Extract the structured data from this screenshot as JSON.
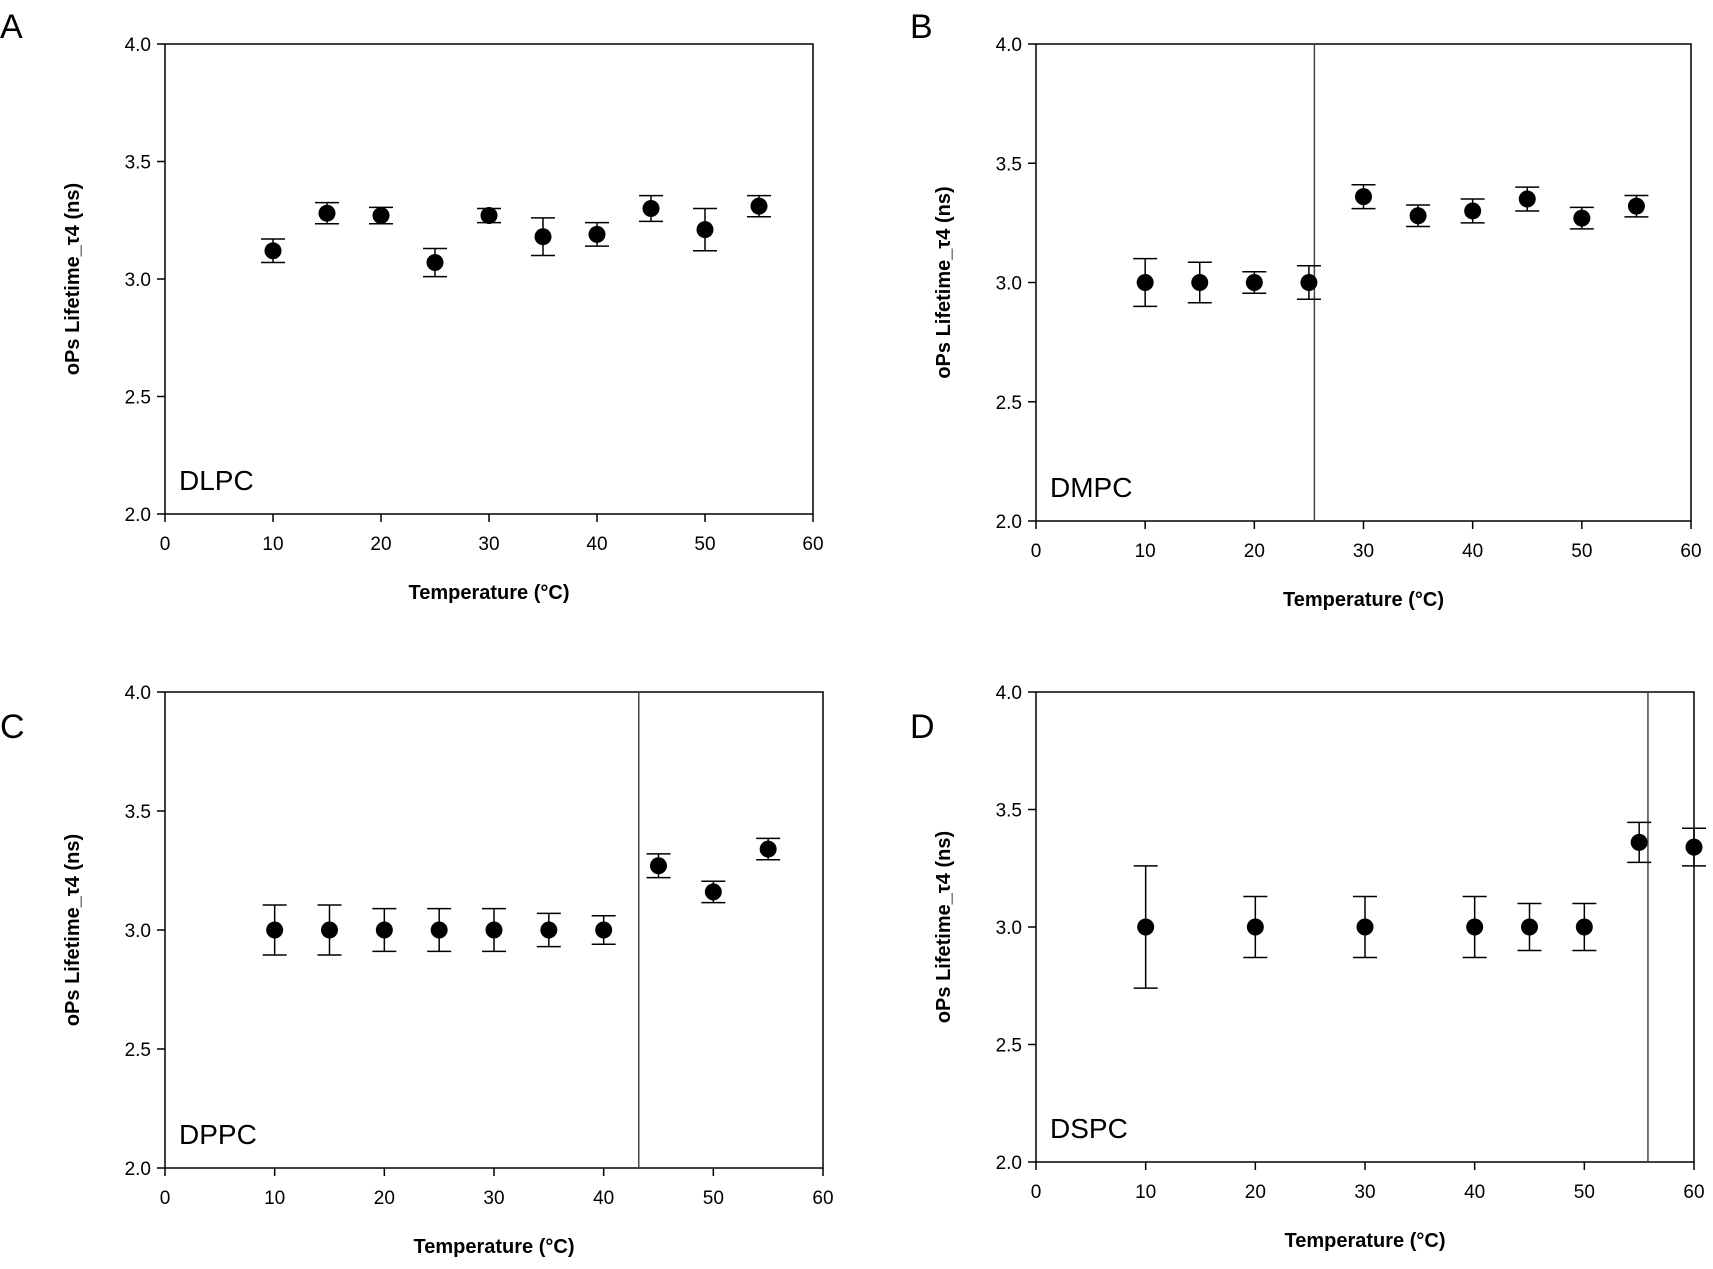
{
  "chart_data": [
    {
      "type": "scatter",
      "panel_letter": "A",
      "sample_label": "DLPC",
      "xlabel": "Temperature (°C)",
      "ylabel": "oPs Lifetime_τ4 (ns)",
      "xlim": [
        0,
        60
      ],
      "ylim": [
        2.0,
        4.0
      ],
      "x_ticks": [
        "0",
        "10",
        "20",
        "30",
        "40",
        "50",
        "60"
      ],
      "y_ticks": [
        "2.0",
        "2.5",
        "3.0",
        "3.5",
        "4.0"
      ],
      "transition_line_x": null,
      "series": [
        {
          "x": [
            10,
            15,
            20,
            25,
            30,
            35,
            40,
            45,
            50,
            55
          ],
          "y": [
            3.12,
            3.28,
            3.27,
            3.07,
            3.27,
            3.18,
            3.19,
            3.3,
            3.21,
            3.31
          ],
          "yerr": [
            0.05,
            0.045,
            0.035,
            0.06,
            0.03,
            0.08,
            0.05,
            0.055,
            0.09,
            0.045
          ]
        }
      ]
    },
    {
      "type": "scatter",
      "panel_letter": "B",
      "sample_label": "DMPC",
      "xlabel": "Temperature (°C)",
      "ylabel": "oPs Lifetime_τ4 (ns)",
      "xlim": [
        0,
        60
      ],
      "ylim": [
        2.0,
        4.0
      ],
      "x_ticks": [
        "0",
        "10",
        "20",
        "30",
        "40",
        "50",
        "60"
      ],
      "y_ticks": [
        "2.0",
        "2.5",
        "3.0",
        "3.5",
        "4.0"
      ],
      "transition_line_x": 25.5,
      "series": [
        {
          "x": [
            10,
            15,
            20,
            25,
            30,
            35,
            40,
            45,
            50,
            55
          ],
          "y": [
            3.0,
            3.0,
            3.0,
            3.0,
            3.36,
            3.28,
            3.3,
            3.35,
            3.27,
            3.32
          ],
          "yerr": [
            0.1,
            0.085,
            0.045,
            0.07,
            0.05,
            0.045,
            0.05,
            0.05,
            0.045,
            0.045
          ]
        }
      ]
    },
    {
      "type": "scatter",
      "panel_letter": "C",
      "sample_label": "DPPC",
      "xlabel": "Temperature (°C)",
      "ylabel": "oPs Lifetime_τ4 (ns)",
      "xlim": [
        0,
        60
      ],
      "ylim": [
        2.0,
        4.0
      ],
      "x_ticks": [
        "0",
        "10",
        "20",
        "30",
        "40",
        "50",
        "60"
      ],
      "y_ticks": [
        "2.0",
        "2.5",
        "3.0",
        "3.5",
        "4.0"
      ],
      "transition_line_x": 43.2,
      "series": [
        {
          "x": [
            10,
            15,
            20,
            25,
            30,
            35,
            40,
            45,
            50,
            55
          ],
          "y": [
            3.0,
            3.0,
            3.0,
            3.0,
            3.0,
            3.0,
            3.0,
            3.27,
            3.16,
            3.34
          ],
          "yerr": [
            0.105,
            0.105,
            0.09,
            0.09,
            0.09,
            0.07,
            0.06,
            0.05,
            0.045,
            0.045
          ]
        }
      ]
    },
    {
      "type": "scatter",
      "panel_letter": "D",
      "sample_label": "DSPC",
      "xlabel": "Temperature (°C)",
      "ylabel": "oPs Lifetime_τ4 (ns)",
      "xlim": [
        0,
        60
      ],
      "ylim": [
        2.0,
        4.0
      ],
      "x_ticks": [
        "0",
        "10",
        "20",
        "30",
        "40",
        "50",
        "60"
      ],
      "y_ticks": [
        "2.0",
        "2.5",
        "3.0",
        "3.5",
        "4.0"
      ],
      "transition_line_x": 55.8,
      "series": [
        {
          "x": [
            10,
            20,
            30,
            40,
            45,
            50,
            55,
            60
          ],
          "y": [
            3.0,
            3.0,
            3.0,
            3.0,
            3.0,
            3.0,
            3.36,
            3.34
          ],
          "yerr": [
            0.26,
            0.13,
            0.13,
            0.13,
            0.1,
            0.1,
            0.085,
            0.08
          ]
        }
      ]
    }
  ]
}
